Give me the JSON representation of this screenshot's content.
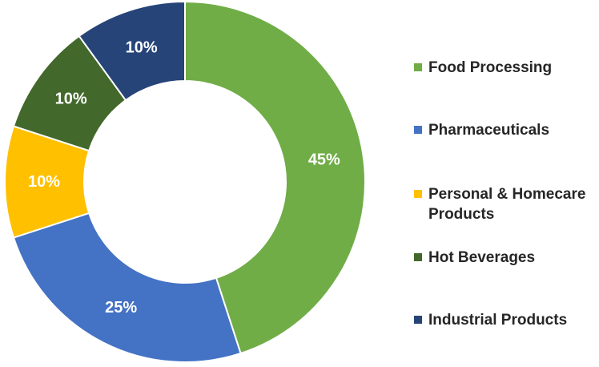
{
  "chart_data": {
    "type": "pie",
    "variant": "donut",
    "title": "",
    "categories": [
      "Food Processing",
      "Pharmaceuticals",
      "Personal & Homecare Products",
      "Hot Beverages",
      "Industrial Products"
    ],
    "values": [
      45,
      25,
      10,
      10,
      10
    ],
    "data_labels": [
      "45%",
      "25%",
      "10%",
      "10%",
      "10%"
    ],
    "colors": [
      "#70AD47",
      "#4472C4",
      "#FFC000",
      "#43682B",
      "#264478"
    ],
    "legend_position": "right",
    "start_angle": "top, clockwise"
  }
}
